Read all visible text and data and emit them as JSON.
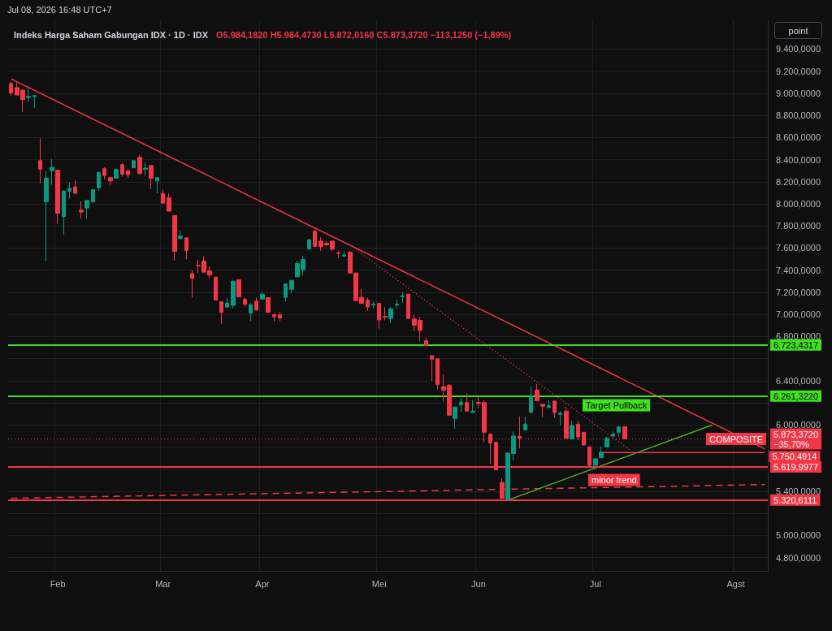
{
  "chart_data": {
    "type": "candlestick",
    "title": "Indeks Harga Saham Gabungan IDX · 1D · IDX",
    "subtitle": "O5.984,1820 H5.984,4730 L5.872,0160 C5.873,3720 −113,1250 (−1,89%)",
    "categories": [
      null,
      null,
      null,
      null,
      null,
      null,
      null,
      null,
      "Feb",
      null,
      null,
      null,
      null,
      null,
      null,
      null,
      null,
      null,
      null,
      null,
      null,
      null,
      null,
      null,
      null,
      null,
      "Mar",
      null,
      null,
      null,
      null,
      null,
      null,
      null,
      null,
      null,
      null,
      null,
      null,
      null,
      null,
      null,
      null,
      "Apr",
      null,
      null,
      null,
      null,
      null,
      null,
      null,
      null,
      null,
      null,
      null,
      null,
      null,
      null,
      null,
      null,
      null,
      null,
      null,
      "Mei",
      null,
      null,
      null,
      null,
      null,
      null,
      null,
      null,
      null,
      null,
      null,
      null,
      null,
      null,
      null,
      null,
      "Jun",
      null,
      null,
      null,
      null,
      null,
      null,
      null,
      null,
      null,
      null,
      null,
      null,
      null,
      null,
      null,
      null,
      null,
      null,
      null,
      "Jul",
      null,
      null,
      null,
      null,
      null,
      null,
      null,
      null,
      null,
      null,
      null,
      null,
      null,
      null,
      null,
      null,
      null,
      null,
      null,
      null,
      null,
      null,
      null,
      "Agst",
      null,
      null,
      null,
      null,
      null
    ],
    "colors": [
      "#f23645",
      "#f23645",
      "#f23645",
      "#089981",
      "#089981",
      "#f23645",
      "#089981",
      "#089981",
      "#f23645",
      "#089981",
      "#089981",
      "#f23645",
      "#f23645",
      "#089981",
      "#089981",
      "#089981",
      "#f23645",
      "#f23645",
      "#089981",
      "#f23645",
      "#f23645",
      "#089981",
      "#f23645",
      "#089981",
      "#f23645",
      "#089981",
      "#f23645",
      "#f23645",
      "#f23645",
      "#089981",
      "#f23645",
      "#f23645",
      "#f23645",
      "#f23645",
      "#f23645",
      "#f23645",
      "#f23645",
      "#089981",
      "#089981",
      "#f23645",
      "#f23645",
      "#089981",
      "#f23645",
      "#089981",
      "#f23645",
      "#f23645",
      "#f23645",
      "#089981",
      "#089981",
      "#089981",
      "#089981",
      "#089981",
      "#f23645",
      "#f23645",
      "#f23645",
      "#f23645",
      "#f23645",
      "#089981",
      "#f23645",
      "#f23645",
      "#f23645",
      "#f23645",
      "#089981",
      "#f23645",
      "#f23645",
      "#089981",
      "#089981",
      "#089981",
      "#f23645",
      "#f23645",
      "#f23645",
      "#f23645",
      "#f23645",
      "#f23645",
      "#f23645",
      "#f23645",
      "#089981",
      "#089981",
      "#f23645",
      "#089981",
      "#f23645",
      "#f23645",
      "#f23645",
      "#f23645",
      "#f23645",
      "#089981",
      "#089981",
      "#f23645",
      "#089981",
      "#089981",
      "#f23645",
      "#f23645",
      "#089981",
      "#f23645",
      "#089981",
      "#f23645",
      "#089981",
      "#f23645",
      "#f23645",
      "#f23645",
      "#089981",
      "#089981",
      "#089981",
      "#089981",
      "#089981",
      "#f23645",
      null,
      null,
      null,
      null,
      null,
      null,
      null,
      null,
      null,
      null,
      null,
      null,
      null,
      null,
      null,
      null,
      null,
      null,
      null,
      null,
      null,
      null,
      null,
      null
    ],
    "ohlc": [
      [
        9089,
        9106,
        8979,
        9003
      ],
      [
        9052,
        9101,
        8984,
        8984
      ],
      [
        9028,
        9035,
        8832,
        8942
      ],
      [
        8962,
        9052,
        8922,
        8972
      ],
      [
        8971,
        8979,
        8869,
        8979
      ],
      [
        8391,
        8592,
        8183,
        8313
      ],
      [
        8019,
        8293,
        7485,
        8232
      ],
      [
        8300,
        8403,
        8171,
        8330
      ],
      [
        8305,
        8305,
        7816,
        7914
      ],
      [
        7884,
        8117,
        7718,
        8117
      ],
      [
        8114,
        8195,
        8048,
        8141
      ],
      [
        8154,
        8212,
        8095,
        8095
      ],
      [
        7943,
        8024,
        7864,
        7926
      ],
      [
        7963,
        8031,
        7864,
        8031
      ],
      [
        8019,
        8129,
        8011,
        8129
      ],
      [
        8146,
        8286,
        8117,
        8286
      ],
      [
        8318,
        8330,
        8220,
        8256
      ],
      [
        8237,
        8244,
        8171,
        8207
      ],
      [
        8232,
        8318,
        8228,
        8310
      ],
      [
        8354,
        8371,
        8244,
        8269
      ],
      [
        8298,
        8318,
        8232,
        8264
      ],
      [
        8325,
        8391,
        8325,
        8391
      ],
      [
        8420,
        8440,
        8269,
        8273
      ],
      [
        8313,
        8371,
        8256,
        8323
      ],
      [
        8347,
        8347,
        8134,
        8232
      ],
      [
        8207,
        8237,
        8097,
        8237
      ],
      [
        8092,
        8129,
        8006,
        8006
      ],
      [
        8055,
        8097,
        7933,
        7933
      ],
      [
        7894,
        7894,
        7485,
        7570
      ],
      [
        7688,
        7761,
        7678,
        7708
      ],
      [
        7693,
        7693,
        7497,
        7578
      ],
      [
        7370,
        7399,
        7154,
        7326
      ],
      [
        7443,
        7492,
        7375,
        7438
      ],
      [
        7482,
        7526,
        7382,
        7382
      ],
      [
        7394,
        7436,
        7326,
        7355
      ],
      [
        7338,
        7338,
        7130,
        7130
      ],
      [
        7115,
        7115,
        6914,
        7019
      ],
      [
        7066,
        7147,
        7066,
        7103
      ],
      [
        7081,
        7301,
        7056,
        7301
      ],
      [
        7313,
        7313,
        7159,
        7159
      ],
      [
        7135,
        7154,
        7068,
        7093
      ],
      [
        7012,
        7105,
        6941,
        7088
      ],
      [
        7120,
        7154,
        7032,
        7041
      ],
      [
        7139,
        7203,
        7139,
        7183
      ],
      [
        7152,
        7152,
        7019,
        7019
      ],
      [
        6997,
        7012,
        6934,
        6978
      ],
      [
        6997,
        7019,
        6939,
        6968
      ],
      [
        7154,
        7276,
        7117,
        7276
      ],
      [
        7227,
        7308,
        7191,
        7308
      ],
      [
        7340,
        7485,
        7340,
        7460
      ],
      [
        7404,
        7529,
        7350,
        7497
      ],
      [
        7590,
        7676,
        7590,
        7676
      ],
      [
        7754,
        7766,
        7614,
        7614
      ],
      [
        7663,
        7697,
        7575,
        7614
      ],
      [
        7644,
        7663,
        7619,
        7629
      ],
      [
        7663,
        7668,
        7575,
        7590
      ],
      [
        7558,
        7575,
        7509,
        7551
      ],
      [
        7528,
        7575,
        7521,
        7538
      ],
      [
        7563,
        7575,
        7374,
        7374
      ],
      [
        7374,
        7378,
        7124,
        7124
      ],
      [
        7154,
        7227,
        7100,
        7100
      ],
      [
        7129,
        7154,
        7031,
        7068
      ],
      [
        7085,
        7117,
        7056,
        7093
      ],
      [
        7100,
        7100,
        6872,
        6951
      ],
      [
        6982,
        7068,
        6946,
        6975
      ],
      [
        6963,
        7068,
        6921,
        7051
      ],
      [
        7085,
        7134,
        7051,
        7093
      ],
      [
        7159,
        7203,
        7105,
        7168
      ],
      [
        7183,
        7183,
        6963,
        6963
      ],
      [
        6958,
        6995,
        6848,
        6902
      ],
      [
        6946,
        6977,
        6757,
        6855
      ],
      [
        6762,
        6786,
        6708,
        6720
      ],
      [
        6627,
        6627,
        6400,
        6595
      ],
      [
        6598,
        6598,
        6321,
        6365
      ],
      [
        6346,
        6456,
        6211,
        6316
      ],
      [
        6360,
        6370,
        6088,
        6088
      ],
      [
        6059,
        6162,
        5966,
        6162
      ],
      [
        6182,
        6240,
        6120,
        6206
      ],
      [
        6203,
        6284,
        6125,
        6125
      ],
      [
        6113,
        6223,
        6113,
        6125
      ],
      [
        6203,
        6260,
        6150,
        6194
      ],
      [
        6203,
        6223,
        5844,
        5934
      ],
      [
        5917,
        5924,
        5648,
        5836
      ],
      [
        5844,
        5844,
        5594,
        5594
      ],
      [
        5481,
        5518,
        5329,
        5337
      ],
      [
        5329,
        5746,
        5317,
        5746
      ],
      [
        5741,
        5941,
        5679,
        5900
      ],
      [
        5897,
        6076,
        5787,
        5880
      ],
      [
        5954,
        6076,
        5954,
        6008
      ],
      [
        6113,
        6346,
        6113,
        6260
      ],
      [
        6316,
        6370,
        6218,
        6218
      ],
      [
        6186,
        6186,
        6071,
        6169
      ],
      [
        6159,
        6223,
        6150,
        6174
      ],
      [
        6216,
        6223,
        6064,
        6113
      ],
      [
        6096,
        6125,
        5998,
        6106
      ],
      [
        6125,
        6162,
        5880,
        5880
      ],
      [
        5873,
        6039,
        5873,
        5995
      ],
      [
        6008,
        6039,
        5861,
        5892
      ],
      [
        5934,
        5934,
        5812,
        5819
      ],
      [
        5802,
        5802,
        5623,
        5635
      ],
      [
        5635,
        5694,
        5611,
        5694
      ],
      [
        5704,
        5807,
        5704,
        5754
      ],
      [
        5802,
        5893,
        5802,
        5880
      ],
      [
        5900,
        5941,
        5893,
        5917
      ],
      [
        5934,
        5983,
        5893,
        5983
      ],
      [
        5984.182,
        5984.473,
        5872.016,
        5873.372
      ],
      null,
      null,
      null,
      null,
      null,
      null,
      null,
      null,
      null,
      null,
      null,
      null,
      null,
      null,
      null,
      null,
      null,
      null,
      null,
      null,
      null,
      null,
      null,
      null
    ],
    "series": [
      {
        "type": "line",
        "color": "#f23645",
        "line_style": "solid",
        "values": [
          9130,
          null,
          null,
          null,
          null,
          null,
          null,
          null,
          null,
          null,
          null,
          null,
          null,
          null,
          null,
          null,
          null,
          null,
          null,
          null,
          null,
          null,
          null,
          null,
          null,
          null,
          null,
          null,
          null,
          null,
          null,
          null,
          null,
          null,
          null,
          null,
          null,
          null,
          null,
          null,
          null,
          null,
          null,
          null,
          null,
          null,
          null,
          null,
          null,
          null,
          null,
          null,
          null,
          null,
          null,
          null,
          null,
          null,
          null,
          null,
          null,
          null,
          null,
          null,
          null,
          null,
          null,
          null,
          null,
          null,
          null,
          null,
          null,
          null,
          null,
          null,
          null,
          null,
          null,
          null,
          null,
          null,
          null,
          null,
          null,
          null,
          null,
          null,
          null,
          null,
          null,
          null,
          null,
          null,
          null,
          null,
          null,
          null,
          null,
          null,
          null,
          null,
          null,
          null,
          null,
          null,
          null,
          null,
          null,
          null,
          null,
          null,
          null,
          null,
          null,
          null,
          null,
          null,
          null,
          null,
          null,
          null,
          null,
          null,
          null,
          null,
          null,
          null,
          null,
          5783
        ]
      },
      {
        "type": "line",
        "color": "#f23645",
        "line_style": "dashed",
        "values": [
          5337,
          null,
          null,
          null,
          null,
          null,
          null,
          null,
          null,
          null,
          null,
          null,
          null,
          null,
          null,
          null,
          null,
          null,
          null,
          null,
          null,
          null,
          null,
          null,
          null,
          null,
          null,
          null,
          null,
          null,
          null,
          null,
          null,
          null,
          null,
          null,
          null,
          null,
          null,
          null,
          null,
          null,
          null,
          null,
          null,
          null,
          null,
          null,
          null,
          null,
          null,
          null,
          null,
          null,
          null,
          null,
          null,
          null,
          null,
          null,
          null,
          null,
          null,
          null,
          null,
          null,
          null,
          null,
          null,
          null,
          null,
          null,
          null,
          null,
          null,
          null,
          null,
          null,
          null,
          null,
          null,
          null,
          null,
          null,
          null,
          null,
          null,
          null,
          null,
          null,
          null,
          null,
          null,
          null,
          null,
          null,
          null,
          null,
          null,
          null,
          null,
          null,
          null,
          null,
          null,
          null,
          null,
          null,
          null,
          null,
          null,
          null,
          null,
          null,
          null,
          null,
          null,
          null,
          null,
          null,
          null,
          null,
          null,
          null,
          null,
          null,
          null,
          null,
          null,
          5461
        ]
      },
      {
        "type": "line",
        "color": "#4caf28",
        "line_style": "solid",
        "values": [
          null,
          null,
          null,
          null,
          null,
          null,
          null,
          null,
          null,
          null,
          null,
          null,
          null,
          null,
          null,
          null,
          null,
          null,
          null,
          null,
          null,
          null,
          null,
          null,
          null,
          null,
          null,
          null,
          null,
          null,
          null,
          null,
          null,
          null,
          null,
          null,
          null,
          null,
          null,
          null,
          null,
          null,
          null,
          null,
          null,
          null,
          null,
          null,
          null,
          null,
          null,
          null,
          null,
          null,
          null,
          null,
          null,
          null,
          null,
          null,
          null,
          null,
          null,
          null,
          null,
          null,
          null,
          null,
          null,
          null,
          null,
          null,
          null,
          null,
          null,
          null,
          null,
          null,
          null,
          null,
          null,
          null,
          null,
          null,
          null,
          5320,
          null,
          null,
          null,
          null,
          null,
          null,
          null,
          null,
          null,
          null,
          null,
          null,
          null,
          null,
          null,
          null,
          null,
          null,
          null,
          null,
          null,
          null,
          null,
          null,
          null,
          null,
          null,
          null,
          null,
          null,
          null,
          null,
          null,
          null,
          6000,
          null,
          null,
          null,
          null,
          null,
          null,
          null,
          null,
          null
        ]
      },
      {
        "type": "line",
        "color": "#f23645",
        "line_style": "dotted",
        "values": [
          null,
          null,
          null,
          null,
          null,
          null,
          null,
          null,
          null,
          null,
          null,
          null,
          null,
          null,
          null,
          null,
          null,
          null,
          null,
          null,
          null,
          null,
          null,
          null,
          null,
          null,
          null,
          null,
          null,
          null,
          null,
          null,
          null,
          null,
          null,
          null,
          null,
          null,
          null,
          null,
          null,
          null,
          null,
          null,
          null,
          null,
          null,
          null,
          null,
          null,
          null,
          null,
          null,
          null,
          null,
          null,
          null,
          null,
          null,
          7585,
          null,
          null,
          null,
          null,
          null,
          null,
          null,
          null,
          null,
          null,
          null,
          null,
          null,
          null,
          null,
          null,
          null,
          null,
          null,
          null,
          null,
          null,
          null,
          null,
          null,
          null,
          null,
          null,
          null,
          null,
          null,
          null,
          null,
          null,
          null,
          null,
          null,
          null,
          null,
          null,
          null,
          null,
          null,
          null,
          null,
          null,
          5770,
          null,
          null,
          null,
          null,
          null,
          null,
          null,
          null,
          null,
          null,
          null,
          null,
          null,
          null,
          null,
          null,
          null,
          null,
          null,
          null,
          null,
          null,
          null
        ]
      },
      {
        "type": "line",
        "color": "#f23645",
        "line_style": "solid",
        "values": [
          null,
          null,
          null,
          null,
          null,
          null,
          null,
          null,
          null,
          null,
          null,
          null,
          null,
          null,
          null,
          null,
          null,
          null,
          null,
          null,
          null,
          null,
          null,
          null,
          null,
          null,
          null,
          null,
          null,
          null,
          null,
          null,
          null,
          null,
          null,
          null,
          null,
          null,
          null,
          null,
          null,
          null,
          null,
          null,
          null,
          null,
          null,
          null,
          null,
          null,
          null,
          null,
          null,
          null,
          null,
          null,
          null,
          null,
          null,
          null,
          null,
          null,
          null,
          null,
          null,
          null,
          null,
          null,
          null,
          null,
          null,
          null,
          null,
          null,
          null,
          null,
          null,
          null,
          null,
          null,
          null,
          null,
          null,
          null,
          null,
          null,
          null,
          null,
          null,
          null,
          null,
          null,
          null,
          null,
          null,
          null,
          null,
          null,
          null,
          null,
          null,
          5750.4914,
          null,
          null,
          null,
          null,
          null,
          null,
          null,
          null,
          null,
          null,
          null,
          null,
          null,
          null,
          null,
          null,
          null,
          null,
          null,
          null,
          null,
          null,
          null,
          null,
          null,
          null,
          null,
          5750.4914
        ],
        "value_labels": [
          null,
          null,
          null,
          null,
          null,
          null,
          null,
          null,
          null,
          null,
          null,
          null,
          null,
          null,
          null,
          null,
          null,
          null,
          null,
          null,
          null,
          null,
          null,
          null,
          null,
          null,
          null,
          null,
          null,
          null,
          null,
          null,
          null,
          null,
          null,
          null,
          null,
          null,
          null,
          null,
          null,
          null,
          null,
          null,
          null,
          null,
          null,
          null,
          null,
          null,
          null,
          null,
          null,
          null,
          null,
          null,
          null,
          null,
          null,
          null,
          null,
          null,
          null,
          null,
          null,
          null,
          null,
          null,
          null,
          null,
          null,
          null,
          null,
          null,
          null,
          null,
          null,
          null,
          null,
          null,
          null,
          null,
          null,
          null,
          null,
          null,
          null,
          null,
          null,
          null,
          null,
          null,
          null,
          null,
          null,
          null,
          null,
          null,
          null,
          null,
          null,
          null,
          null,
          null,
          null,
          null,
          null,
          null,
          null,
          null,
          null,
          null,
          null,
          null,
          null,
          null,
          null,
          null,
          null,
          null,
          null,
          null,
          null,
          null,
          null,
          null,
          null,
          null,
          null,
          "5.750,4914"
        ]
      }
    ],
    "ylim": [
      4680,
      9660
    ],
    "yticks": [
      {
        "value": 4800,
        "label": "4.800,0000"
      },
      {
        "value": 5000,
        "label": "5.000,0000"
      },
      {
        "value": 5200,
        "label": null
      },
      {
        "value": 5400,
        "label": "5.400,0000"
      },
      {
        "value": 5600,
        "label": null
      },
      {
        "value": 5800,
        "label": null
      },
      {
        "value": 6000,
        "label": "6.000,0000"
      },
      {
        "value": 6200,
        "label": null
      },
      {
        "value": 6400,
        "label": "6.400,0000"
      },
      {
        "value": 6600,
        "label": null
      },
      {
        "value": 6800,
        "label": "6.800,0000"
      },
      {
        "value": 7000,
        "label": "7.000,0000"
      },
      {
        "value": 7200,
        "label": "7.200,0000"
      },
      {
        "value": 7400,
        "label": "7.400,0000"
      },
      {
        "value": 7600,
        "label": "7.600,0000"
      },
      {
        "value": 7800,
        "label": "7.800,0000"
      },
      {
        "value": 8000,
        "label": "8.000,0000"
      },
      {
        "value": 8200,
        "label": "8.200,0000"
      },
      {
        "value": 8400,
        "label": "8.400,0000"
      },
      {
        "value": 8600,
        "label": "8.600,0000"
      },
      {
        "value": 8800,
        "label": "8.800,0000"
      },
      {
        "value": 9000,
        "label": "9.000,0000"
      },
      {
        "value": 9200,
        "label": "9.200,0000"
      },
      {
        "value": 9400,
        "label": "9.400,0000"
      }
    ],
    "ref_lines": [
      {
        "axis": "y",
        "value": 6723.4317,
        "label": "6.723,4317",
        "color": "#3fe01f"
      },
      {
        "axis": "y",
        "value": 6261.322,
        "label": "6.261,3220",
        "color": "#3fe01f"
      },
      {
        "axis": "y",
        "value": 5873.372,
        "label": "5.873,3720\n−35,70%",
        "color": "#f23645",
        "line_style": "dotted"
      },
      {
        "axis": "y",
        "value": 5619.9977,
        "label": "5.619,9977",
        "color": "#f23645"
      },
      {
        "axis": "y",
        "value": 5320.6111,
        "label": "5.320,6111",
        "color": "#f23645"
      }
    ],
    "annotations": [
      "Jul 08, 2026 16:48 UTC+7",
      "point",
      "Target Pullback",
      "minor trend",
      {
        "text": "COMPOSITE",
        "y": 5873.372
      }
    ],
    "grid": true
  }
}
